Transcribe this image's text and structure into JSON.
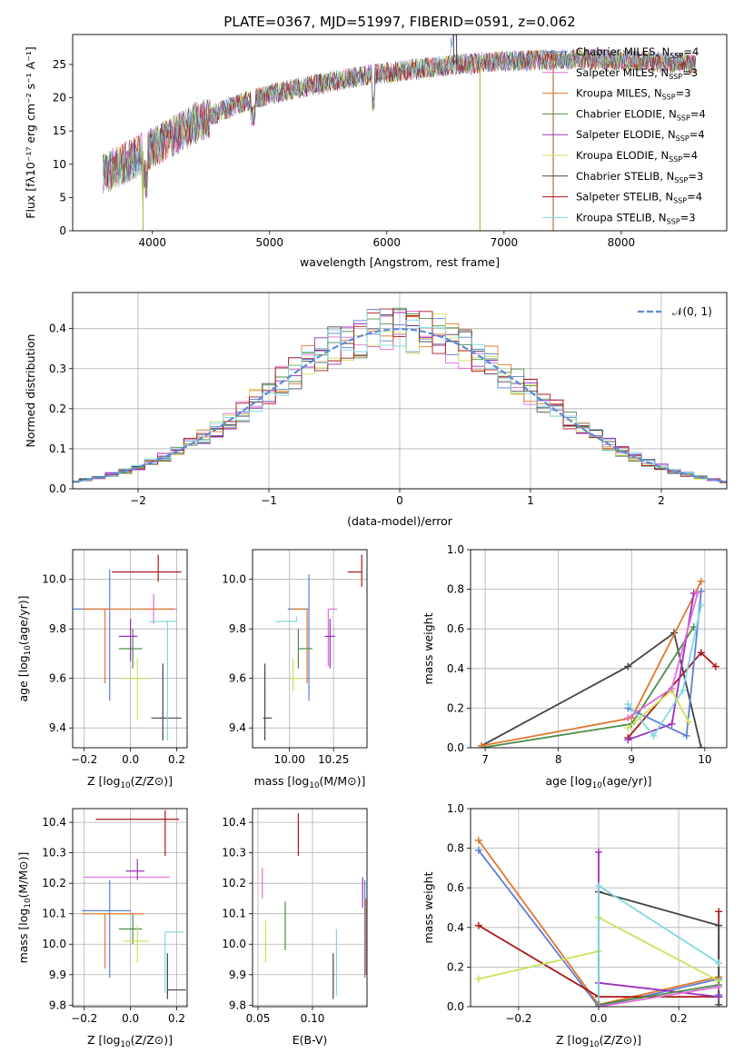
{
  "chart_data": [
    {
      "id": "spectrum",
      "type": "line",
      "title": "PLATE=0367, MJD=51997, FIBERID=0591, z=0.062",
      "xlabel": "wavelength [Angstrom, rest frame]",
      "ylabel": "Flux [fλ10⁻¹⁷ erg cm⁻² s⁻¹ A⁻¹]",
      "xlim": [
        3320,
        8900
      ],
      "ylim": [
        0,
        29.5
      ],
      "xticks": [
        4000,
        5000,
        6000,
        7000,
        8000
      ],
      "yticks": [
        0,
        5,
        10,
        15,
        20,
        25
      ],
      "grid": false,
      "legend_position": "top-right",
      "continuum": {
        "x": [
          3580,
          3700,
          3800,
          3900,
          4000,
          4100,
          4200,
          4300,
          4400,
          4500,
          4600,
          4700,
          4800,
          4900,
          5000,
          5200,
          5400,
          5600,
          5800,
          6000,
          6200,
          6400,
          6600,
          6800,
          7000,
          7200,
          7400,
          7600,
          7800,
          8000,
          8200,
          8400,
          8640
        ],
        "y": [
          8.5,
          9.5,
          10.5,
          11.5,
          12.5,
          13.5,
          14.5,
          15.5,
          16.5,
          17.3,
          18.0,
          18.8,
          19.5,
          20.0,
          20.5,
          21.3,
          22.0,
          22.7,
          23.3,
          23.8,
          24.2,
          24.6,
          25.0,
          25.2,
          25.5,
          25.6,
          25.7,
          25.8,
          25.8,
          25.7,
          25.5,
          25.3,
          25.0
        ]
      },
      "series": [
        {
          "name": "Chabrier MILES, N_SSP=4",
          "label_main": "Chabrier MILES, N",
          "label_sub": "SSP",
          "label_tail": "=4",
          "color": "#5b7fd6"
        },
        {
          "name": "Salpeter MILES, N_SSP=3",
          "label_main": "Salpeter MILES, N",
          "label_sub": "SSP",
          "label_tail": "=3",
          "color": "#e06ed6"
        },
        {
          "name": "Kroupa MILES, N_SSP=3",
          "label_main": "Kroupa MILES, N",
          "label_sub": "SSP",
          "label_tail": "=3",
          "color": "#e0772c"
        },
        {
          "name": "Chabrier ELODIE, N_SSP=4",
          "label_main": "Chabrier ELODIE, N",
          "label_sub": "SSP",
          "label_tail": "=4",
          "color": "#4e8d4a"
        },
        {
          "name": "Salpeter ELODIE, N_SSP=4",
          "label_main": "Salpeter ELODIE, N",
          "label_sub": "SSP",
          "label_tail": "=4",
          "color": "#9b2fbf"
        },
        {
          "name": "Kroupa ELODIE, N_SSP=4",
          "label_main": "Kroupa ELODIE, N",
          "label_sub": "SSP",
          "label_tail": "=4",
          "color": "#c9e25a"
        },
        {
          "name": "Chabrier STELIB, N_SSP=3",
          "label_main": "Chabrier STELIB, N",
          "label_sub": "SSP",
          "label_tail": "=3",
          "color": "#444444"
        },
        {
          "name": "Salpeter STELIB, N_SSP=4",
          "label_main": "Salpeter STELIB, N",
          "label_sub": "SSP",
          "label_tail": "=4",
          "color": "#aa1717"
        },
        {
          "name": "Kroupa STELIB, N_SSP=3",
          "label_main": "Kroupa STELIB, N",
          "label_sub": "SSP",
          "label_tail": "=3",
          "color": "#7fd8e0"
        }
      ]
    },
    {
      "id": "residuals",
      "type": "histogram",
      "xlabel": "(data-model)/error",
      "ylabel": "Normed distribution",
      "xlim": [
        -2.5,
        2.5
      ],
      "ylim": [
        0,
        0.49
      ],
      "xticks": [
        -2,
        -1,
        0,
        1,
        2
      ],
      "yticks": [
        0.0,
        0.1,
        0.2,
        0.3,
        0.4
      ],
      "grid": true,
      "legend_position": "top-right",
      "legend": "𝒩(0, 1)",
      "bin_width": 0.1
    },
    {
      "id": "age_vs_Z",
      "type": "errorbar",
      "xlabel_main": "Z [log",
      "xlabel_sub": "10",
      "xlabel_tail": "(Z/Z⊙)]",
      "ylabel_main": "age  [log",
      "ylabel_sub": "10",
      "ylabel_tail": "(age/yr)]",
      "xlim": [
        -0.25,
        0.245
      ],
      "ylim": [
        9.32,
        10.12
      ],
      "xticks": [
        -0.2,
        0.0,
        0.2
      ],
      "yticks": [
        9.4,
        9.6,
        9.8,
        10.0
      ],
      "grid": true,
      "points": [
        {
          "color": "#5b7fd6",
          "x": -0.09,
          "xerr": [
            0.16,
            0.0
          ],
          "y": 9.88,
          "yerr": [
            0.37,
            0.16
          ]
        },
        {
          "color": "#e06ed6",
          "x": 0.1,
          "xerr": [
            0.04,
            0.1
          ],
          "y": 9.88,
          "yerr": [
            0.06,
            0.06
          ]
        },
        {
          "color": "#e0772c",
          "x": -0.11,
          "xerr": [
            0.1,
            0.3
          ],
          "y": 9.88,
          "yerr": [
            0.3,
            0.0
          ]
        },
        {
          "color": "#4e8d4a",
          "x": 0.01,
          "xerr": [
            0.06,
            0.04
          ],
          "y": 9.72,
          "yerr": [
            0.08,
            0.08
          ]
        },
        {
          "color": "#9b2fbf",
          "x": 0.0,
          "xerr": [
            0.05,
            0.03
          ],
          "y": 9.77,
          "yerr": [
            0.1,
            0.07
          ]
        },
        {
          "color": "#c9e25a",
          "x": 0.03,
          "xerr": [
            0.07,
            0.05
          ],
          "y": 9.6,
          "yerr": [
            0.17,
            0.08
          ]
        },
        {
          "color": "#444444",
          "x": 0.14,
          "xerr": [
            0.05,
            0.08
          ],
          "y": 9.44,
          "yerr": [
            0.09,
            0.22
          ]
        },
        {
          "color": "#aa1717",
          "x": 0.12,
          "xerr": [
            0.2,
            0.1
          ],
          "y": 10.03,
          "yerr": [
            0.04,
            0.07
          ]
        },
        {
          "color": "#7fd8e0",
          "x": 0.16,
          "xerr": [
            0.08,
            0.04
          ],
          "y": 9.83,
          "yerr": [
            0.48,
            0.0
          ]
        }
      ]
    },
    {
      "id": "age_vs_mass",
      "type": "errorbar",
      "xlabel_main": "mass [log",
      "xlabel_sub": "10",
      "xlabel_tail": "(M/M⊙)]",
      "xlim": [
        9.79,
        10.44
      ],
      "ylim": [
        9.32,
        10.12
      ],
      "xticks": [
        10.0,
        10.25
      ],
      "yticks": [
        9.4,
        9.6,
        9.8,
        10.0
      ],
      "grid": true,
      "points": [
        {
          "color": "#5b7fd6",
          "x": 10.11,
          "xerr": [
            0.12,
            0.0
          ],
          "y": 9.88,
          "yerr": [
            0.37,
            0.14
          ]
        },
        {
          "color": "#e06ed6",
          "x": 10.22,
          "xerr": [
            0.0,
            0.05
          ],
          "y": 9.88,
          "yerr": [
            0.23,
            0.0
          ]
        },
        {
          "color": "#e0772c",
          "x": 10.1,
          "xerr": [
            0.09,
            0.0
          ],
          "y": 9.88,
          "yerr": [
            0.3,
            0.0
          ]
        },
        {
          "color": "#4e8d4a",
          "x": 10.05,
          "xerr": [
            0.0,
            0.08
          ],
          "y": 9.72,
          "yerr": [
            0.08,
            0.08
          ]
        },
        {
          "color": "#9b2fbf",
          "x": 10.23,
          "xerr": [
            0.03,
            0.03
          ],
          "y": 9.77,
          "yerr": [
            0.13,
            0.07
          ]
        },
        {
          "color": "#c9e25a",
          "x": 10.02,
          "xerr": [
            0.02,
            0.05
          ],
          "y": 9.6,
          "yerr": [
            0.05,
            0.08
          ]
        },
        {
          "color": "#444444",
          "x": 9.86,
          "xerr": [
            0.01,
            0.04
          ],
          "y": 9.44,
          "yerr": [
            0.09,
            0.22
          ]
        },
        {
          "color": "#aa1717",
          "x": 10.41,
          "xerr": [
            0.08,
            0.0
          ],
          "y": 10.03,
          "yerr": [
            0.06,
            0.07
          ]
        },
        {
          "color": "#7fd8e0",
          "x": 10.04,
          "xerr": [
            0.12,
            0.0
          ],
          "y": 9.83,
          "yerr": [
            0.0,
            0.02
          ]
        }
      ]
    },
    {
      "id": "weight_vs_age",
      "type": "line",
      "xlabel_main": "age  [log",
      "xlabel_sub": "10",
      "xlabel_tail": "(age/yr)]",
      "ylabel": "mass weight",
      "xlim": [
        6.8,
        10.3
      ],
      "ylim": [
        0,
        1.0
      ],
      "xticks": [
        7,
        8,
        9,
        10
      ],
      "yticks": [
        0.0,
        0.2,
        0.4,
        0.6,
        0.8,
        1.0
      ],
      "grid": true,
      "series": [
        {
          "color": "#444444",
          "x": [
            6.95,
            8.95,
            9.58,
            9.95
          ],
          "y": [
            0.01,
            0.41,
            0.58,
            0.0
          ]
        },
        {
          "color": "#aa1717",
          "x": [
            8.95,
            9.95,
            10.15
          ],
          "y": [
            0.05,
            0.48,
            0.41
          ]
        },
        {
          "color": "#4e8d4a",
          "x": [
            6.95,
            9.0,
            9.85
          ],
          "y": [
            0.0,
            0.12,
            0.61
          ]
        },
        {
          "color": "#e0772c",
          "x": [
            6.95,
            9.0,
            9.95
          ],
          "y": [
            0.01,
            0.15,
            0.84
          ]
        },
        {
          "color": "#9b2fbf",
          "x": [
            8.95,
            9.55,
            9.85
          ],
          "y": [
            0.04,
            0.12,
            0.78
          ]
        },
        {
          "color": "#5b7fd6",
          "x": [
            8.95,
            9.75,
            9.95
          ],
          "y": [
            0.2,
            0.06,
            0.79
          ]
        },
        {
          "color": "#7fd8e0",
          "x": [
            8.95,
            9.3,
            9.7,
            9.95
          ],
          "y": [
            0.22,
            0.06,
            0.29,
            0.72
          ]
        },
        {
          "color": "#c9e25a",
          "x": [
            8.95,
            9.55,
            9.78
          ],
          "y": [
            0.1,
            0.29,
            0.13
          ]
        },
        {
          "color": "#e06ed6",
          "x": [
            8.95,
            9.55,
            9.9
          ],
          "y": [
            0.15,
            0.3,
            0.78
          ]
        }
      ]
    },
    {
      "id": "mass_vs_Z",
      "type": "errorbar",
      "xlabel_main": "Z [log",
      "xlabel_sub": "10",
      "xlabel_tail": "(Z/Z⊙)]",
      "ylabel_main": "mass [log",
      "ylabel_sub": "10",
      "ylabel_tail": "(M/M⊙)]",
      "xlim": [
        -0.25,
        0.245
      ],
      "ylim": [
        9.795,
        10.445
      ],
      "xticks": [
        -0.2,
        0.0,
        0.2
      ],
      "yticks": [
        9.8,
        9.9,
        10.0,
        10.1,
        10.2,
        10.3,
        10.4
      ],
      "grid": true,
      "points": [
        {
          "color": "#5b7fd6",
          "x": -0.09,
          "xerr": [
            0.12,
            0.09
          ],
          "y": 10.11,
          "yerr": [
            0.22,
            0.1
          ]
        },
        {
          "color": "#e06ed6",
          "x": 0.1,
          "xerr": [
            0.3,
            0.07
          ],
          "y": 10.22,
          "yerr": [
            0.0,
            0.0
          ]
        },
        {
          "color": "#e0772c",
          "x": -0.11,
          "xerr": [
            0.1,
            0.17
          ],
          "y": 10.1,
          "yerr": [
            0.18,
            0.0
          ]
        },
        {
          "color": "#4e8d4a",
          "x": 0.01,
          "xerr": [
            0.06,
            0.04
          ],
          "y": 10.05,
          "yerr": [
            0.05,
            0.05
          ]
        },
        {
          "color": "#9b2fbf",
          "x": 0.03,
          "xerr": [
            0.05,
            0.03
          ],
          "y": 10.24,
          "yerr": [
            0.03,
            0.04
          ]
        },
        {
          "color": "#c9e25a",
          "x": 0.03,
          "xerr": [
            0.06,
            0.05
          ],
          "y": 10.01,
          "yerr": [
            0.07,
            0.05
          ]
        },
        {
          "color": "#444444",
          "x": 0.16,
          "xerr": [
            0.0,
            0.08
          ],
          "y": 9.85,
          "yerr": [
            0.03,
            0.12
          ]
        },
        {
          "color": "#aa1717",
          "x": 0.15,
          "xerr": [
            0.3,
            0.06
          ],
          "y": 10.41,
          "yerr": [
            0.12,
            0.03
          ]
        },
        {
          "color": "#7fd8e0",
          "x": 0.15,
          "xerr": [
            0.0,
            0.08
          ],
          "y": 10.04,
          "yerr": [
            0.2,
            0.0
          ]
        }
      ]
    },
    {
      "id": "mass_vs_ebv",
      "type": "errorbar",
      "xlabel": "E(B-V)",
      "xlim": [
        0.045,
        0.15
      ],
      "ylim": [
        9.795,
        10.445
      ],
      "xticks": [
        0.05,
        0.1
      ],
      "yticks": [
        9.8,
        9.9,
        10.0,
        10.1,
        10.2,
        10.3,
        10.4
      ],
      "grid": true,
      "points": [
        {
          "color": "#5b7fd6",
          "x": 0.148,
          "y": 10.11,
          "yerr": [
            0.22,
            0.1
          ]
        },
        {
          "color": "#e06ed6",
          "x": 0.054,
          "y": 10.2,
          "yerr": [
            0.05,
            0.05
          ]
        },
        {
          "color": "#e0772c",
          "x": 0.149,
          "y": 10.1,
          "yerr": [
            0.2,
            0.05
          ]
        },
        {
          "color": "#4e8d4a",
          "x": 0.075,
          "y": 10.06,
          "yerr": [
            0.08,
            0.08
          ]
        },
        {
          "color": "#9b2fbf",
          "x": 0.146,
          "y": 10.16,
          "yerr": [
            0.04,
            0.06
          ]
        },
        {
          "color": "#c9e25a",
          "x": 0.057,
          "y": 10.01,
          "yerr": [
            0.07,
            0.07
          ]
        },
        {
          "color": "#444444",
          "x": 0.119,
          "y": 9.85,
          "yerr": [
            0.03,
            0.12
          ]
        },
        {
          "color": "#aa1717",
          "x": 0.087,
          "y": 10.37,
          "yerr": [
            0.08,
            0.06
          ]
        },
        {
          "color": "#7fd8e0",
          "x": 0.122,
          "y": 9.95,
          "yerr": [
            0.12,
            0.1
          ]
        }
      ]
    },
    {
      "id": "weight_vs_Z",
      "type": "line",
      "xlabel_main": "Z [log",
      "xlabel_sub": "10",
      "xlabel_tail": "(Z/Z⊙)]",
      "ylabel": "mass weight",
      "xlim": [
        -0.32,
        0.32
      ],
      "ylim": [
        0,
        1.0
      ],
      "xticks": [
        -0.2,
        0.0,
        0.2
      ],
      "yticks": [
        0.0,
        0.2,
        0.4,
        0.6,
        0.8,
        1.0
      ],
      "grid": true,
      "series": [
        {
          "color": "#5b7fd6",
          "x": [
            -0.3,
            0.0,
            0.3,
            0.3
          ],
          "y": [
            0.79,
            0.0,
            0.14,
            0.06
          ]
        },
        {
          "color": "#e0772c",
          "x": [
            -0.3,
            0.0,
            0.3
          ],
          "y": [
            0.84,
            0.01,
            0.15
          ]
        },
        {
          "color": "#aa1717",
          "x": [
            -0.3,
            0.0,
            0.3,
            0.3,
            0.3
          ],
          "y": [
            0.41,
            0.05,
            0.05,
            0.48,
            0.05
          ]
        },
        {
          "color": "#444444",
          "x": [
            0.0,
            0.0,
            0.3,
            0.3
          ],
          "y": [
            0.01,
            0.58,
            0.41,
            0.01
          ]
        },
        {
          "color": "#c9e25a",
          "x": [
            -0.3,
            0.0,
            0.0,
            0.3
          ],
          "y": [
            0.14,
            0.28,
            0.45,
            0.13
          ]
        },
        {
          "color": "#9b2fbf",
          "x": [
            0.0,
            0.0,
            0.3
          ],
          "y": [
            0.78,
            0.12,
            0.05
          ]
        },
        {
          "color": "#7fd8e0",
          "x": [
            0.0,
            0.0,
            0.3
          ],
          "y": [
            0.0,
            0.61,
            0.22
          ]
        },
        {
          "color": "#4e8d4a",
          "x": [
            0.0,
            0.0,
            0.3
          ],
          "y": [
            0.0,
            0.01,
            0.11
          ]
        },
        {
          "color": "#e06ed6",
          "x": [
            0.0,
            0.3
          ],
          "y": [
            0.0,
            0.1
          ]
        }
      ]
    }
  ]
}
